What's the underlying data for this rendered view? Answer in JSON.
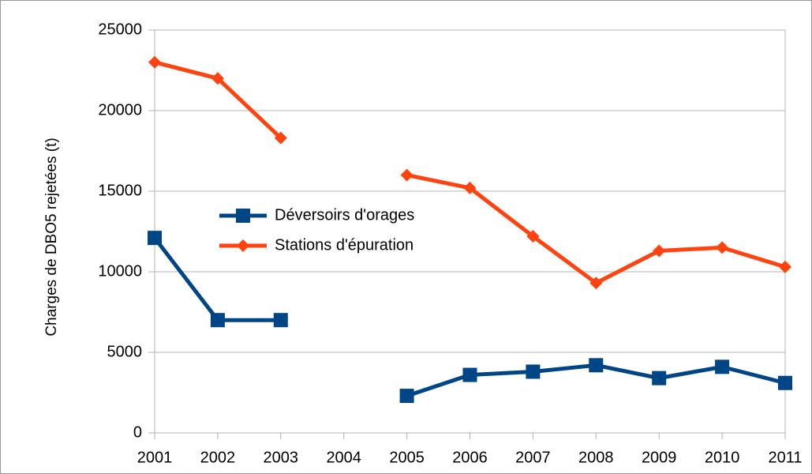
{
  "chart_data": {
    "type": "line",
    "y_label": "Charges de DBO5 rejetées (t)",
    "x": [
      2001,
      2002,
      2003,
      2004,
      2005,
      2006,
      2007,
      2008,
      2009,
      2010,
      2011
    ],
    "series": [
      {
        "name": "Déversoirs d'orages",
        "color": "#004586",
        "marker": "square",
        "values": [
          12100,
          7000,
          7000,
          null,
          2300,
          3600,
          3800,
          4200,
          3400,
          4100,
          3100
        ]
      },
      {
        "name": "Stations d'épuration",
        "color": "#ff420e",
        "marker": "diamond",
        "values": [
          23000,
          22000,
          18300,
          null,
          16000,
          15200,
          12200,
          9300,
          11300,
          11500,
          10300
        ]
      }
    ],
    "xlim": [
      2001,
      2011
    ],
    "xticks": [
      2001,
      2002,
      2003,
      2004,
      2005,
      2006,
      2007,
      2008,
      2009,
      2010,
      2011
    ],
    "ylim": [
      0,
      25000
    ],
    "yticks": [
      0,
      5000,
      10000,
      15000,
      20000,
      25000
    ],
    "grid": true,
    "legend": "left"
  }
}
